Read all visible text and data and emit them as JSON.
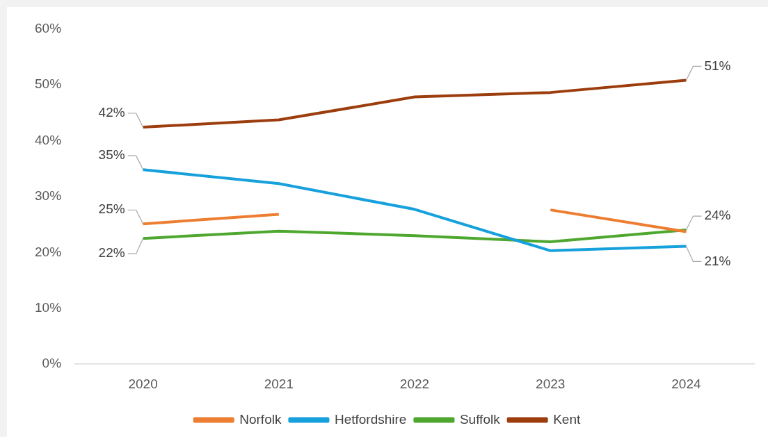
{
  "chart_data": {
    "type": "line",
    "categories": [
      "2020",
      "2021",
      "2022",
      "2023",
      "2024"
    ],
    "series": [
      {
        "name": "Norfolk",
        "color": "#ed7d31",
        "values": [
          25.1,
          26.8,
          null,
          27.6,
          23.7
        ],
        "value_labels": [
          "25%",
          null,
          null,
          null,
          null
        ]
      },
      {
        "name": "Hetfordshire",
        "color": "#16a0dc",
        "values": [
          34.8,
          32.3,
          27.7,
          20.3,
          21.1
        ],
        "value_labels": [
          "35%",
          null,
          null,
          null,
          "21%"
        ]
      },
      {
        "name": "Suffolk",
        "color": "#4ea72e",
        "values": [
          22.5,
          23.8,
          23.0,
          21.9,
          24.0
        ],
        "value_labels": [
          "22%",
          null,
          null,
          null,
          "24%"
        ]
      },
      {
        "name": "Kent",
        "color": "#9c3d0e",
        "values": [
          42.4,
          43.7,
          47.8,
          48.6,
          50.8
        ],
        "value_labels": [
          "42%",
          null,
          null,
          null,
          "51%"
        ]
      }
    ],
    "ylim": [
      0,
      60
    ],
    "yticks": [
      {
        "value": 0,
        "label": "0%"
      },
      {
        "value": 10,
        "label": "10%"
      },
      {
        "value": 20,
        "label": "20%"
      },
      {
        "value": 30,
        "label": "30%"
      },
      {
        "value": 40,
        "label": "40%"
      },
      {
        "value": 50,
        "label": "50%"
      },
      {
        "value": 60,
        "label": "60%"
      }
    ],
    "grid": false,
    "legend": "bottom",
    "marker": "none",
    "line_style": "solid"
  }
}
